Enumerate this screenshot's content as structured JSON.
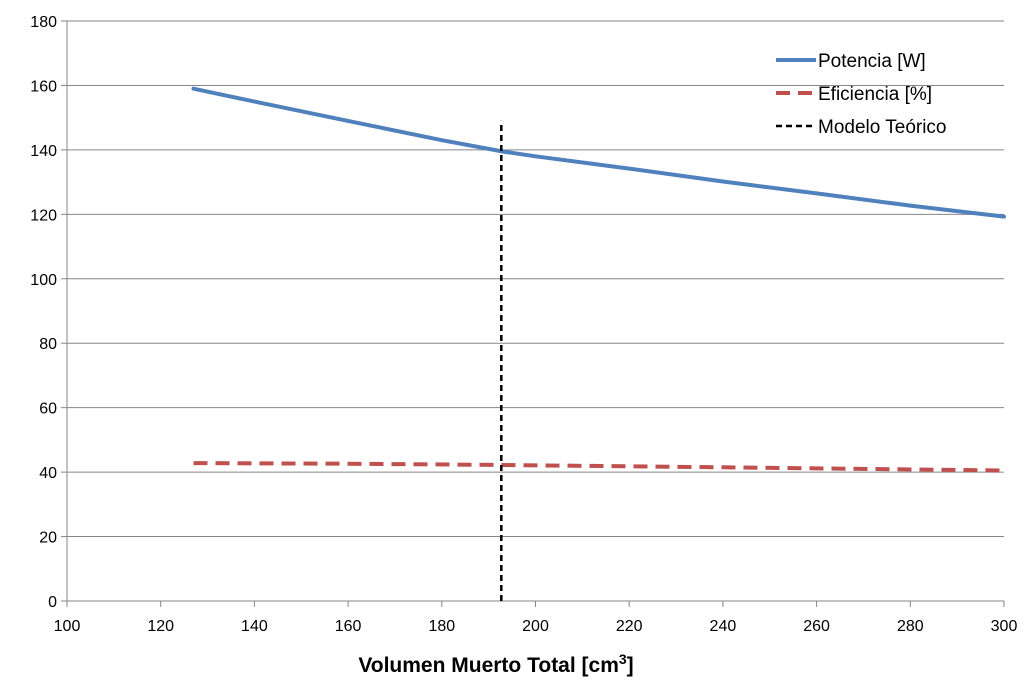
{
  "chart_data": {
    "type": "line",
    "title": "",
    "xlabel": "Volumen Muerto Total [cm",
    "xlabel_superscript": "3",
    "xlabel_suffix": "]",
    "ylabel": "",
    "xlim": [
      100,
      300
    ],
    "ylim": [
      0,
      180
    ],
    "x_ticks": [
      100,
      120,
      140,
      160,
      180,
      200,
      220,
      240,
      260,
      280,
      300
    ],
    "y_ticks": [
      0,
      20,
      40,
      60,
      80,
      100,
      120,
      140,
      160,
      180
    ],
    "grid": "horizontal",
    "legend_position": "top-right",
    "series": [
      {
        "name": "Potencia [W]",
        "color": "#4f81bd",
        "style": "solid",
        "x": [
          127,
          140,
          160,
          180,
          193,
          200,
          220,
          240,
          260,
          280,
          300
        ],
        "y": [
          159,
          155,
          149,
          143,
          139.5,
          138,
          134.2,
          130.2,
          126.5,
          122.7,
          119.3
        ]
      },
      {
        "name": "Eficiencia [%]",
        "color": "#c0504d",
        "style": "dashed",
        "x": [
          127,
          160,
          193,
          240,
          300
        ],
        "y": [
          42.8,
          42.6,
          42.2,
          41.5,
          40.5
        ]
      },
      {
        "name": "Modelo Teórico",
        "color": "#000000",
        "style": "dotted",
        "x": [
          192.7,
          192.7
        ],
        "y": [
          0,
          149
        ]
      }
    ]
  }
}
